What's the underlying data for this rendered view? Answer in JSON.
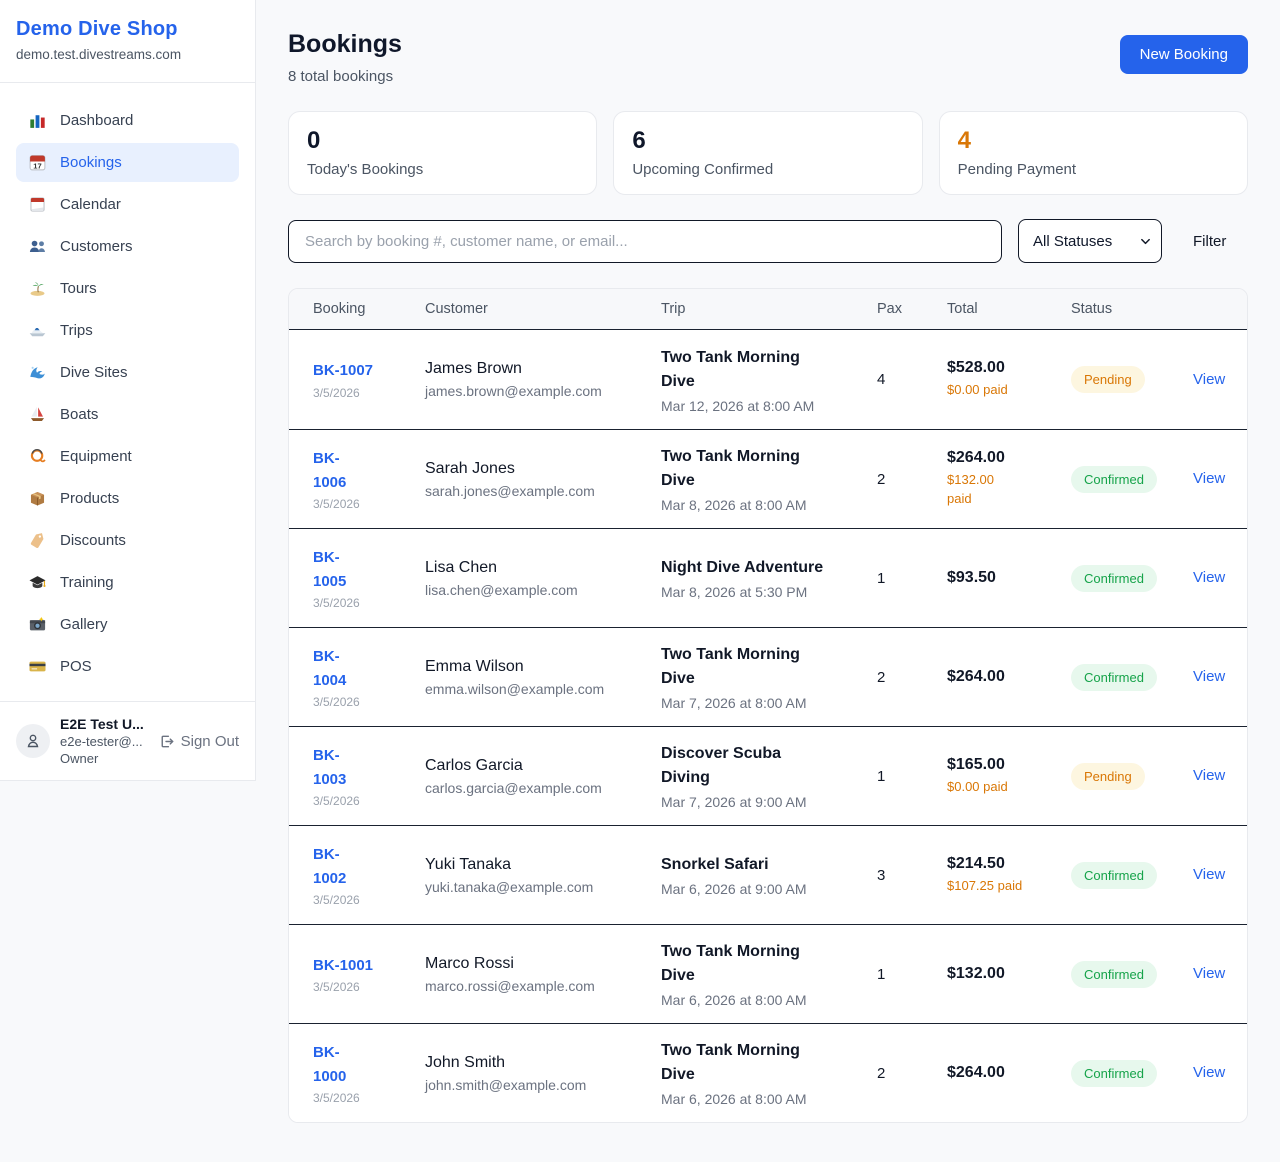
{
  "brand": {
    "name": "Demo Dive Shop",
    "domain": "demo.test.divestreams.com"
  },
  "colors": {
    "accent_blue": "#2563eb",
    "pending_orange": "#d97706",
    "confirmed_green": "#16a34a"
  },
  "sidebar": {
    "items": [
      {
        "label": "Dashboard",
        "icon_name": "bar-chart-icon",
        "active": false
      },
      {
        "label": "Bookings",
        "icon_name": "calendar-icon",
        "active": true
      },
      {
        "label": "Calendar",
        "icon_name": "tear-off-calendar-icon",
        "active": false
      },
      {
        "label": "Customers",
        "icon_name": "people-icon",
        "active": false
      },
      {
        "label": "Tours",
        "icon_name": "island-icon",
        "active": false
      },
      {
        "label": "Trips",
        "icon_name": "speedboat-icon",
        "active": false
      },
      {
        "label": "Dive Sites",
        "icon_name": "wave-icon",
        "active": false
      },
      {
        "label": "Boats",
        "icon_name": "sailboat-icon",
        "active": false
      },
      {
        "label": "Equipment",
        "icon_name": "diving-mask-icon",
        "active": false
      },
      {
        "label": "Products",
        "icon_name": "package-icon",
        "active": false
      },
      {
        "label": "Discounts",
        "icon_name": "label-icon",
        "active": false
      },
      {
        "label": "Training",
        "icon_name": "graduation-cap-icon",
        "active": false
      },
      {
        "label": "Gallery",
        "icon_name": "camera-icon",
        "active": false
      },
      {
        "label": "POS",
        "icon_name": "credit-card-icon",
        "active": false
      }
    ],
    "user": {
      "name": "E2E Test U...",
      "email": "e2e-tester@...",
      "role": "Owner",
      "sign_out_label": "Sign Out"
    }
  },
  "header": {
    "title": "Bookings",
    "subtitle": "8 total bookings",
    "new_booking_label": "New Booking"
  },
  "stats": [
    {
      "value": "0",
      "label": "Today's Bookings",
      "color": "#0f172a"
    },
    {
      "value": "6",
      "label": "Upcoming Confirmed",
      "color": "#0f172a"
    },
    {
      "value": "4",
      "label": "Pending Payment",
      "color": "#d97706"
    }
  ],
  "filters": {
    "search_placeholder": "Search by booking #, customer name, or email...",
    "status_value": "All Statuses",
    "filter_label": "Filter"
  },
  "table": {
    "headers": [
      "Booking",
      "Customer",
      "Trip",
      "Pax",
      "Total",
      "Status"
    ],
    "view_label": "View",
    "rows": [
      {
        "id": "BK-1007",
        "date": "3/5/2026",
        "customer_name": "James Brown",
        "customer_email": "james.brown@example.com",
        "trip_name": "Two Tank Morning\nDive",
        "trip_datetime": "Mar 12, 2026 at 8:00 AM",
        "pax": "4",
        "total": "$528.00",
        "paid": "$0.00 paid",
        "status": "Pending"
      },
      {
        "id": "BK-\n1006",
        "date": "3/5/2026",
        "customer_name": "Sarah Jones",
        "customer_email": "sarah.jones@example.com",
        "trip_name": "Two Tank Morning\nDive",
        "trip_datetime": "Mar 8, 2026 at 8:00 AM",
        "pax": "2",
        "total": "$264.00",
        "paid": "$132.00\npaid",
        "status": "Confirmed"
      },
      {
        "id": "BK-\n1005",
        "date": "3/5/2026",
        "customer_name": "Lisa Chen",
        "customer_email": "lisa.chen@example.com",
        "trip_name": "Night Dive Adventure",
        "trip_datetime": "Mar 8, 2026 at 5:30 PM",
        "pax": "1",
        "total": "$93.50",
        "paid": "",
        "status": "Confirmed"
      },
      {
        "id": "BK-\n1004",
        "date": "3/5/2026",
        "customer_name": "Emma Wilson",
        "customer_email": "emma.wilson@example.com",
        "trip_name": "Two Tank Morning\nDive",
        "trip_datetime": "Mar 7, 2026 at 8:00 AM",
        "pax": "2",
        "total": "$264.00",
        "paid": "",
        "status": "Confirmed"
      },
      {
        "id": "BK-\n1003",
        "date": "3/5/2026",
        "customer_name": "Carlos Garcia",
        "customer_email": "carlos.garcia@example.com",
        "trip_name": "Discover Scuba\nDiving",
        "trip_datetime": "Mar 7, 2026 at 9:00 AM",
        "pax": "1",
        "total": "$165.00",
        "paid": "$0.00 paid",
        "status": "Pending"
      },
      {
        "id": "BK-\n1002",
        "date": "3/5/2026",
        "customer_name": "Yuki Tanaka",
        "customer_email": "yuki.tanaka@example.com",
        "trip_name": "Snorkel Safari",
        "trip_datetime": "Mar 6, 2026 at 9:00 AM",
        "pax": "3",
        "total": "$214.50",
        "paid": "$107.25 paid",
        "status": "Confirmed"
      },
      {
        "id": "BK-1001",
        "date": "3/5/2026",
        "customer_name": "Marco Rossi",
        "customer_email": "marco.rossi@example.com",
        "trip_name": "Two Tank Morning\nDive",
        "trip_datetime": "Mar 6, 2026 at 8:00 AM",
        "pax": "1",
        "total": "$132.00",
        "paid": "",
        "status": "Confirmed"
      },
      {
        "id": "BK-\n1000",
        "date": "3/5/2026",
        "customer_name": "John Smith",
        "customer_email": "john.smith@example.com",
        "trip_name": "Two Tank Morning\nDive",
        "trip_datetime": "Mar 6, 2026 at 8:00 AM",
        "pax": "2",
        "total": "$264.00",
        "paid": "",
        "status": "Confirmed"
      }
    ]
  }
}
